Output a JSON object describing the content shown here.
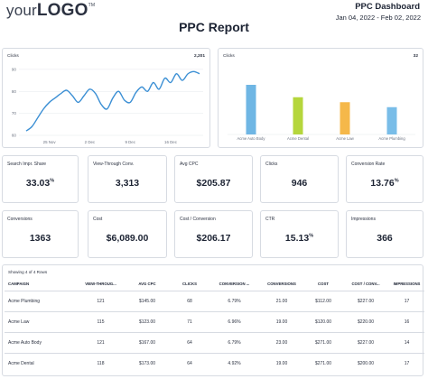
{
  "header": {
    "logo_prefix": "your",
    "logo_main": "LOGO",
    "logo_tm": "TM",
    "dashboard_title": "PPC Dashboard",
    "date_range": "Jan 04, 2022 - Feb 02, 2022",
    "report_title": "PPC Report"
  },
  "colors": {
    "line": "#3b8fd4",
    "bar_auto_body": "#6fb6e4",
    "bar_dental": "#b5d63c",
    "bar_law": "#f5b84a",
    "bar_plumbing": "#79bde8",
    "border": "#d7dbe2"
  },
  "line_panel": {
    "title": "Clicks",
    "total": "2,201"
  },
  "bar_panel": {
    "title": "Clicks",
    "total": "32"
  },
  "chart_data": [
    {
      "type": "line",
      "title": "Clicks",
      "y_ticks": [
        60,
        70,
        80,
        90
      ],
      "ylim": [
        60,
        92
      ],
      "x_tick_labels": [
        "25 Nov",
        "2 Dec",
        "9 Dec",
        "16 Dec"
      ],
      "x_tick_index": [
        4,
        11,
        18,
        25
      ],
      "series": [
        {
          "values": [
            62,
            64,
            68,
            72,
            75,
            77,
            79,
            80.5,
            78,
            75,
            78,
            81,
            79,
            74,
            72,
            77,
            80,
            76,
            75,
            79.5,
            82,
            80,
            84,
            81,
            86,
            84,
            88,
            85,
            88,
            89,
            88
          ]
        }
      ],
      "grid": true
    },
    {
      "type": "bar",
      "title": "Clicks",
      "categories": [
        "Acme Auto Body",
        "Acme Dental",
        "Acme Law",
        "Acme Plumbing"
      ],
      "values": [
        10,
        7.5,
        6.5,
        5.5
      ],
      "ylim": [
        0,
        14
      ]
    }
  ],
  "kpis_row1": [
    {
      "label": "Search Impr. Share",
      "value": "33.03",
      "suffix": "%"
    },
    {
      "label": "View-Through Conv.",
      "value": "3,313",
      "suffix": ""
    },
    {
      "label": "Avg CPC",
      "value": "$205.87",
      "suffix": ""
    },
    {
      "label": "Clicks",
      "value": "946",
      "suffix": ""
    },
    {
      "label": "Conversion Rate",
      "value": "13.76",
      "suffix": "%"
    }
  ],
  "kpis_row2": [
    {
      "label": "Conversions",
      "value": "1363",
      "suffix": ""
    },
    {
      "label": "Cost",
      "value": "$6,089.00",
      "suffix": ""
    },
    {
      "label": "Cost / Conversion",
      "value": "$206.17",
      "suffix": ""
    },
    {
      "label": "CTR",
      "value": "15.13",
      "suffix": "%"
    },
    {
      "label": "Impressions",
      "value": "366",
      "suffix": ""
    }
  ],
  "table": {
    "caption": "Showing 4 of 4 Rows",
    "columns": [
      "CAMPAIGN",
      "VIEW-THROUG...",
      "AVG CPC",
      "CLICKS",
      "CONVERSION ...",
      "CONVERSIONS",
      "COST",
      "COST / CONV...",
      "IMPRESSIONS"
    ],
    "rows": [
      [
        "Acme Plumbing",
        "121",
        "$145.00",
        "68",
        "6.79%",
        "21.00",
        "$112.00",
        "$227.00",
        "17"
      ],
      [
        "Acme Law",
        "115",
        "$123.00",
        "71",
        "6.96%",
        "19.00",
        "$120.00",
        "$220.00",
        "16"
      ],
      [
        "Acme Auto Body",
        "121",
        "$167.00",
        "64",
        "6.79%",
        "23.00",
        "$271.00",
        "$227.00",
        "14"
      ],
      [
        "Acme Dental",
        "118",
        "$173.00",
        "64",
        "4.92%",
        "19.00",
        "$271.00",
        "$200.00",
        "17"
      ]
    ]
  }
}
